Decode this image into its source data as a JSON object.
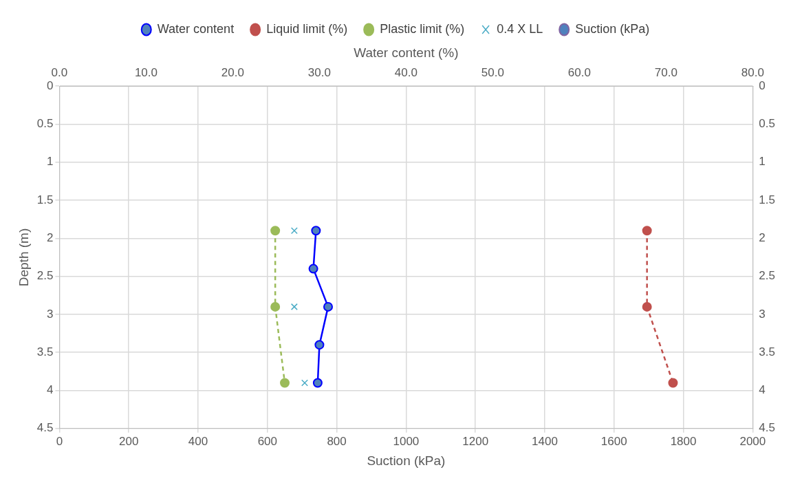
{
  "chart_data": {
    "type": "line",
    "xlabel": "Suction (kPa)",
    "x2label": "Water content (%)",
    "ylabel": "Depth (m)",
    "xlim": [
      0,
      2000
    ],
    "xticks": [
      0,
      200,
      400,
      600,
      800,
      1000,
      1200,
      1400,
      1600,
      1800,
      2000
    ],
    "x2lim": [
      0,
      80
    ],
    "x2ticks": [
      {
        "value": 0,
        "label": "0.0"
      },
      {
        "value": 10,
        "label": "10.0"
      },
      {
        "value": 20,
        "label": "20.0"
      },
      {
        "value": 30,
        "label": "30.0"
      },
      {
        "value": 40,
        "label": "40.0"
      },
      {
        "value": 50,
        "label": "50.0"
      },
      {
        "value": 60,
        "label": "60.0"
      },
      {
        "value": 70,
        "label": "70.0"
      },
      {
        "value": 80,
        "label": "80.0"
      }
    ],
    "ylim": [
      4.5,
      0
    ],
    "yticks": [
      0,
      0.5,
      1,
      1.5,
      2,
      2.5,
      3,
      3.5,
      4,
      4.5
    ],
    "y2lim": [
      4.5,
      0
    ],
    "y2ticks": [
      0,
      0.5,
      1,
      1.5,
      2,
      2.5,
      3,
      3.5,
      4,
      4.5
    ],
    "grid": true,
    "legend": "top",
    "series": [
      {
        "name": "Water content",
        "type": "line",
        "axis": "x2",
        "color": "#0000ff",
        "marker": "circle",
        "line_style": "solid",
        "x": [
          29.6,
          29.3,
          31.0,
          30.0,
          29.8
        ],
        "values": [
          1.9,
          2.4,
          2.9,
          3.4,
          3.9
        ]
      },
      {
        "name": "Liquid limit (%)",
        "type": "line",
        "axis": "x2",
        "color": "#c0504d",
        "marker": "circle",
        "line_style": "dashed",
        "x": [
          67.8,
          67.8,
          70.8
        ],
        "values": [
          1.9,
          2.9,
          3.9
        ]
      },
      {
        "name": "Plastic limit (%)",
        "type": "line",
        "axis": "x2",
        "color": "#9bbb59",
        "marker": "circle",
        "line_style": "dashed",
        "x": [
          24.9,
          24.9,
          26.0
        ],
        "values": [
          1.9,
          2.9,
          3.9
        ]
      },
      {
        "name": "0.4 X LL",
        "type": "scatter",
        "axis": "x2",
        "color": "#4bacc6",
        "marker": "cross",
        "x": [
          27.1,
          27.1,
          28.3
        ],
        "values": [
          1.9,
          2.9,
          3.9
        ]
      },
      {
        "name": "Suction (kPa)",
        "type": "line",
        "color": "#8064a2",
        "marker": "circle",
        "line_style": "solid",
        "x": [
          null
        ],
        "values": [
          null
        ]
      }
    ]
  }
}
